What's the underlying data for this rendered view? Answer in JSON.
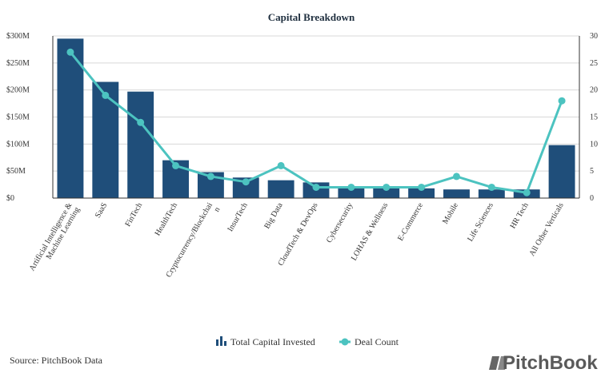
{
  "chart_data": {
    "type": "bar",
    "title": "Capital Breakdown",
    "categories": [
      "Artificial Intelligence & Machine Learning",
      "SaaS",
      "FinTech",
      "HealthTech",
      "Cryptocurrency/Blockchain",
      "InsurTech",
      "Big Data",
      "CloudTech & DevOps",
      "Cybersecurity",
      "LOHAS & Wellness",
      "E-Commerce",
      "Mobile",
      "Life Sciences",
      "HR Tech",
      "All Other Verticals"
    ],
    "series": [
      {
        "name": "Total Capital Invested",
        "type": "bar",
        "axis": "left",
        "color": "#1f4e7a",
        "values": [
          295,
          215,
          197,
          70,
          48,
          38,
          33,
          29,
          21,
          20,
          18,
          16,
          16,
          16,
          98
        ]
      },
      {
        "name": "Deal Count",
        "type": "line",
        "axis": "right",
        "color": "#4cc3c0",
        "values": [
          27,
          19,
          14,
          6,
          4,
          3,
          6,
          2,
          2,
          2,
          2,
          4,
          2,
          1,
          18
        ]
      }
    ],
    "y_left": {
      "ylim": [
        0,
        300
      ],
      "ticks": [
        0,
        50,
        100,
        150,
        200,
        250,
        300
      ],
      "tick_labels": [
        "$0",
        "$50M",
        "$100M",
        "$150M",
        "$200M",
        "$250M",
        "$300M"
      ]
    },
    "y_right": {
      "ylim": [
        0,
        30
      ],
      "ticks": [
        0,
        5,
        10,
        15,
        20,
        25,
        30
      ],
      "tick_labels": [
        "0",
        "5",
        "10",
        "15",
        "20",
        "25",
        "30"
      ]
    },
    "grid": true,
    "legend_position": "bottom-center"
  },
  "footer": {
    "source": "Source: PitchBook Data",
    "brand": "PitchBook"
  },
  "colors": {
    "bar": "#1f4e7a",
    "line": "#4cc3c0",
    "grid": "#d8d8d8",
    "axis": "#333333"
  }
}
